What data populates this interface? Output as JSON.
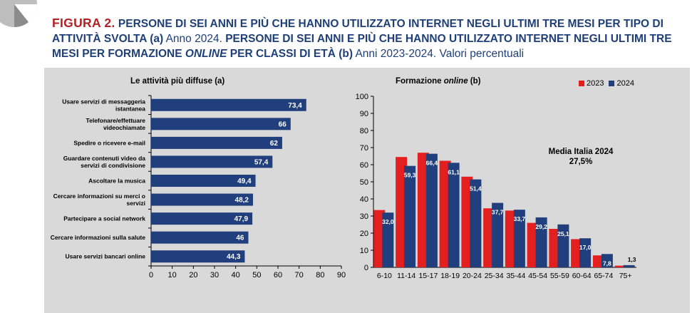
{
  "header": {
    "figure_label": "FIGURA 2.",
    "part1": "PERSONE DI SEI ANNI E PIÙ CHE HANNO UTILIZZATO INTERNET NEGLI ULTIMI TRE MESI PER TIPO DI ATTIVITÀ SVOLTA (a)",
    "year1": "Anno 2024.",
    "part2": "PERSONE DI SEI ANNI E PIÙ CHE HANNO UTILIZZATO INTERNET NEGLI ULTIMI TRE MESI PER FORMAZIONE",
    "online": "ONLINE",
    "part3": "PER CLASSI DI ETÀ (b)",
    "years2": "Anni 2023-2024. Valori percentuali"
  },
  "colors": {
    "title_blue": "#1f3f78",
    "title_red": "#b32122",
    "bar_blue": "#213f7c",
    "bar_red": "#e41f1f",
    "panel_gray": "#d9d9d9"
  },
  "chart_data": [
    {
      "type": "bar",
      "orientation": "horizontal",
      "title": "Le attività più diffuse (a)",
      "categories": [
        "Usare servizi di messaggeria istantanea",
        "Telefonare/effettuare videochiamate",
        "Spedire o ricevere e-mail",
        "Guardare contenuti video da servizi di condivisione",
        "Ascoltare la musica",
        "Cercare informazioni su merci o servizi",
        "Partecipare a social network",
        "Cercare informazioni sulla salute",
        "Usare servizi bancari online"
      ],
      "category_lines": [
        [
          "Usare servizi di messaggeria",
          "istantanea"
        ],
        [
          "Telefonare/effettuare",
          "videochiamate"
        ],
        [
          "Spedire o ricevere e-mail"
        ],
        [
          "Guardare contenuti video da",
          "servizi di condivisione"
        ],
        [
          "Ascoltare la musica"
        ],
        [
          "Cercare informazioni su merci o",
          "servizi"
        ],
        [
          "Partecipare a social network"
        ],
        [
          "Cercare informazioni sulla salute"
        ],
        [
          "Usare servizi bancari online"
        ]
      ],
      "values": [
        73.4,
        66,
        62,
        57.4,
        49.4,
        48.2,
        47.9,
        46,
        44.3
      ],
      "value_labels": [
        "73,4",
        "66",
        "62",
        "57,4",
        "49,4",
        "48,2",
        "47,9",
        "46",
        "44,3"
      ],
      "xlim": [
        0,
        90
      ],
      "xticks": [
        0,
        10,
        20,
        30,
        40,
        50,
        60,
        70,
        80,
        90
      ],
      "grid": false
    },
    {
      "type": "bar",
      "orientation": "vertical",
      "title": "Formazione online (b)",
      "title_plain": "Formazione ",
      "title_italic": "online",
      "title_suffix": " (b)",
      "categories": [
        "6-10",
        "11-14",
        "15-17",
        "18-19",
        "20-24",
        "25-34",
        "35-44",
        "45-54",
        "55-59",
        "60-64",
        "65-74",
        "75+"
      ],
      "series": [
        {
          "name": "2023",
          "color": "#e41f1f",
          "values": [
            33.5,
            64.5,
            67,
            62.3,
            53,
            34.5,
            33.2,
            26,
            22.5,
            16.5,
            7,
            1
          ]
        },
        {
          "name": "2024",
          "color": "#213f7c",
          "values": [
            32.0,
            59.3,
            66.4,
            61.1,
            51.4,
            37.7,
            33.7,
            29.2,
            25.1,
            17.0,
            7.8,
            1.3
          ],
          "value_labels": [
            "32,0",
            "59,3",
            "66,4",
            "61,1",
            "51,4",
            "37,7",
            "33,7",
            "29,2",
            "25,1",
            "17,0",
            "7,8",
            "1,3"
          ]
        }
      ],
      "ylim": [
        0,
        100
      ],
      "yticks": [
        0,
        10,
        20,
        30,
        40,
        50,
        60,
        70,
        80,
        90,
        100
      ],
      "legend_position": "top-right",
      "annotation": {
        "line1": "Media Italia 2024",
        "line2": "27,5%"
      },
      "grid": false
    }
  ]
}
